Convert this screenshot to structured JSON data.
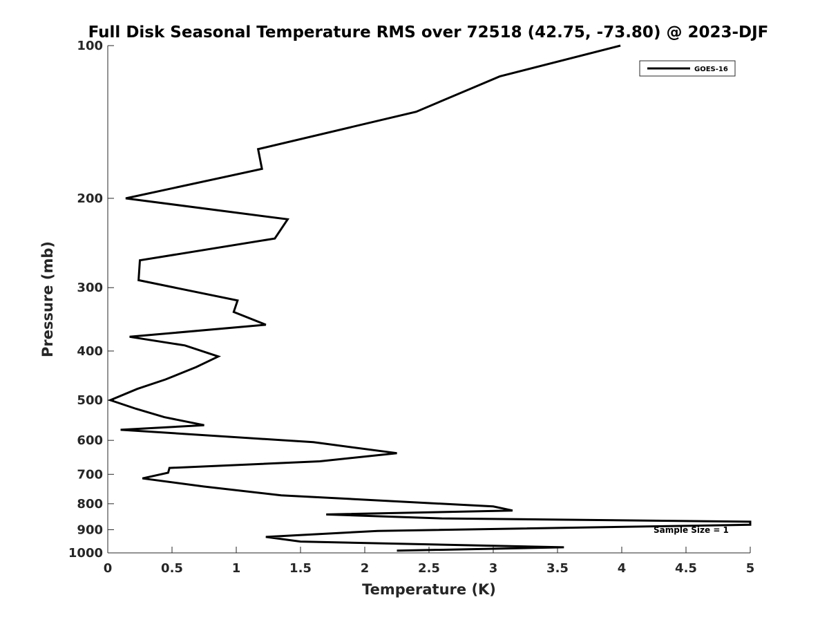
{
  "chart_data": {
    "type": "line",
    "title": "Full Disk Seasonal Temperature RMS over 72518 (42.75, -73.80) @ 2023-DJF",
    "xlabel": "Temperature (K)",
    "ylabel": "Pressure (mb)",
    "xlim": [
      0,
      5
    ],
    "ylim": [
      100,
      1000
    ],
    "y_scale": "log",
    "y_reversed": true,
    "grid": false,
    "legend_position": "top-right",
    "x_ticks": [
      "0",
      "0.5",
      "1",
      "1.5",
      "2",
      "2.5",
      "3",
      "3.5",
      "4",
      "4.5",
      "5"
    ],
    "y_ticks": [
      "100",
      "200",
      "300",
      "400",
      "500",
      "600",
      "700",
      "800",
      "900",
      "1000"
    ],
    "annotation": "Sample Size = 1",
    "series": [
      {
        "name": "GOES-16",
        "color": "#000000",
        "x": [
          3.99,
          3.05,
          2.4,
          1.17,
          1.2,
          0.14,
          1.4,
          1.3,
          0.25,
          0.24,
          1.01,
          0.98,
          1.23,
          0.17,
          0.6,
          0.86,
          0.69,
          0.45,
          0.23,
          0.02,
          0.22,
          0.44,
          0.75,
          0.1,
          1.6,
          2.25,
          1.65,
          0.48,
          0.47,
          0.27,
          0.75,
          1.35,
          3.0,
          3.15,
          1.7,
          2.6,
          5.0,
          5.0,
          2.1,
          1.23,
          1.5,
          3.55,
          2.25
        ],
        "y": [
          100,
          115,
          135,
          160,
          175,
          200,
          220,
          240,
          265,
          290,
          318,
          335,
          355,
          375,
          390,
          410,
          430,
          455,
          475,
          500,
          520,
          540,
          560,
          572,
          605,
          636,
          660,
          680,
          695,
          713,
          740,
          770,
          810,
          825,
          840,
          855,
          868,
          880,
          905,
          930,
          950,
          975,
          990
        ]
      }
    ]
  }
}
